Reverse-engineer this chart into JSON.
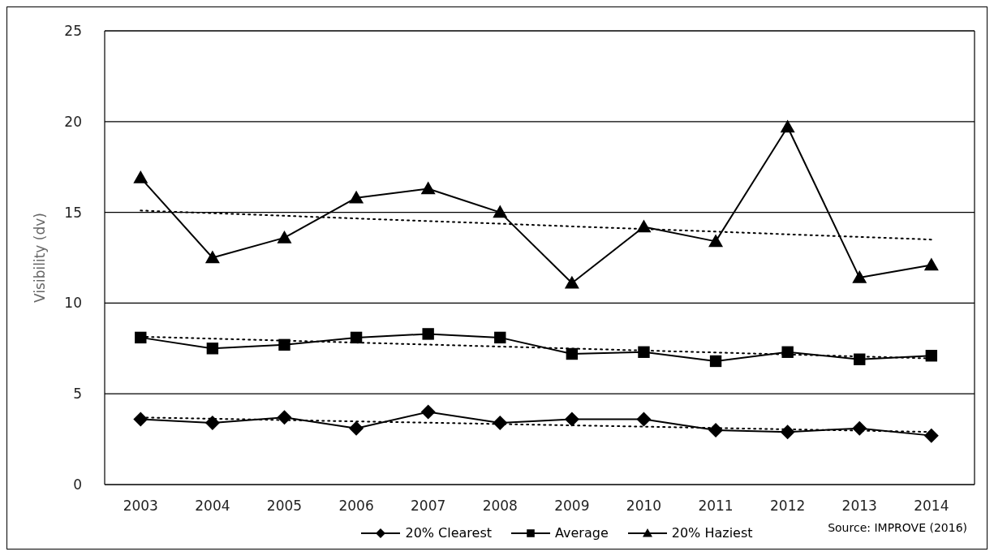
{
  "chart_data": {
    "type": "line",
    "ylabel": "Visibility (dv)",
    "x": [
      2003,
      2004,
      2005,
      2006,
      2007,
      2008,
      2009,
      2010,
      2011,
      2012,
      2013,
      2014
    ],
    "xlim": [
      2002.5,
      2014.6
    ],
    "xticks": [
      2003,
      2004,
      2005,
      2006,
      2007,
      2008,
      2009,
      2010,
      2011,
      2012,
      2013,
      2014
    ],
    "ylim": [
      0,
      25
    ],
    "yticks": [
      0,
      5,
      10,
      15,
      20,
      25
    ],
    "grid": "y",
    "legend": "bottom",
    "line_style": "solid",
    "series": [
      {
        "name": "20% Clearest",
        "color": "#000000",
        "marker": "diamond",
        "values": [
          3.6,
          3.4,
          3.7,
          3.1,
          4.0,
          3.4,
          3.6,
          3.6,
          3.0,
          2.9,
          3.1,
          2.7
        ]
      },
      {
        "name": "Average",
        "color": "#000000",
        "marker": "square",
        "values": [
          8.1,
          7.5,
          7.7,
          8.1,
          8.3,
          8.1,
          7.2,
          7.3,
          6.8,
          7.3,
          6.9,
          7.1
        ]
      },
      {
        "name": "20% Haziest",
        "color": "#000000",
        "marker": "triangle",
        "values": [
          16.9,
          12.5,
          13.6,
          15.8,
          16.3,
          15.0,
          11.1,
          14.2,
          13.4,
          19.7,
          11.4,
          12.1
        ]
      },
      {
        "type": "line",
        "color": "#000000",
        "marker": "none",
        "line_style": "dotted",
        "values": [
          3.7,
          null,
          null,
          null,
          null,
          null,
          null,
          null,
          null,
          null,
          null,
          2.9
        ]
      },
      {
        "type": "line",
        "color": "#000000",
        "marker": "none",
        "line_style": "dotted",
        "values": [
          8.15,
          null,
          null,
          null,
          null,
          null,
          null,
          null,
          null,
          null,
          null,
          6.95
        ]
      },
      {
        "type": "line",
        "color": "#000000",
        "marker": "none",
        "line_style": "dotted",
        "values": [
          15.1,
          null,
          null,
          null,
          null,
          null,
          null,
          null,
          null,
          null,
          null,
          13.5
        ]
      }
    ],
    "annotations": [
      "Source: IMPROVE (2016)"
    ]
  }
}
